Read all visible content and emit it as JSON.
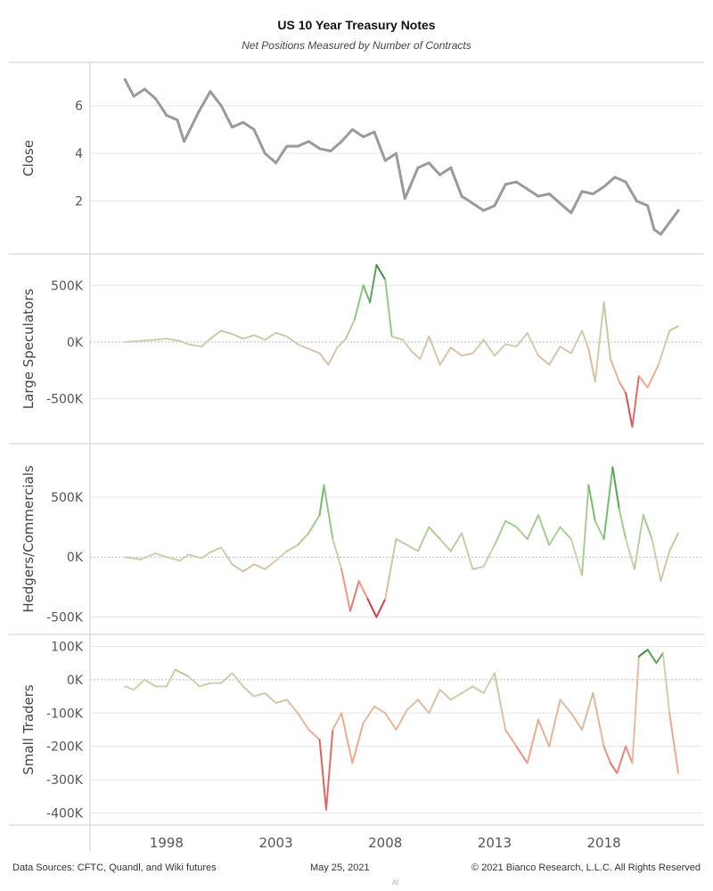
{
  "title": "US 10 Year Treasury Notes",
  "subtitle": "Net Positions Measured by Number of Contracts",
  "footer": {
    "sources": "Data Sources: CFTC, Quandl, and Wiki futures",
    "date": "May 25, 2021",
    "copyright": "© 2021 Bianco Research, L.L.C. All Rights Reserved",
    "tiny": "Al"
  },
  "colors": {
    "close_line": "#9a9a9a",
    "positive_strong": "#2e7d32",
    "positive_light": "#8ccc7e",
    "neutral": "#cfcfb0",
    "negative_light": "#f4a58e",
    "negative_strong": "#c2152b",
    "grid": "#e6e6e6",
    "zero_line": "#bbbbbb",
    "axis_text": "#555555"
  },
  "chart_data": [
    {
      "type": "line",
      "ylabel": "Close",
      "yticks": [
        2,
        4,
        6
      ],
      "ytick_labels": [
        "2",
        "4",
        "6"
      ],
      "ylim": [
        0,
        7.6
      ],
      "x": [
        1996.1,
        1996.5,
        1997.0,
        1997.5,
        1998.0,
        1998.5,
        1998.8,
        1999.5,
        2000.0,
        2000.5,
        2001.0,
        2001.5,
        2002.0,
        2002.5,
        2003.0,
        2003.5,
        2004.0,
        2004.5,
        2005.0,
        2005.5,
        2006.0,
        2006.5,
        2007.0,
        2007.5,
        2008.0,
        2008.5,
        2008.9,
        2009.5,
        2010.0,
        2010.5,
        2011.0,
        2011.5,
        2012.0,
        2012.5,
        2013.0,
        2013.5,
        2014.0,
        2014.5,
        2015.0,
        2015.5,
        2016.0,
        2016.5,
        2017.0,
        2017.5,
        2018.0,
        2018.5,
        2019.0,
        2019.5,
        2020.0,
        2020.3,
        2020.6,
        2021.0,
        2021.4
      ],
      "values": [
        7.1,
        6.4,
        6.7,
        6.3,
        5.6,
        5.4,
        4.5,
        5.8,
        6.6,
        6.0,
        5.1,
        5.3,
        5.0,
        4.0,
        3.6,
        4.3,
        4.3,
        4.5,
        4.2,
        4.1,
        4.5,
        5.0,
        4.7,
        4.9,
        3.7,
        4.0,
        2.1,
        3.4,
        3.6,
        3.1,
        3.4,
        2.2,
        1.9,
        1.6,
        1.8,
        2.7,
        2.8,
        2.5,
        2.2,
        2.3,
        1.9,
        1.5,
        2.4,
        2.3,
        2.6,
        3.0,
        2.8,
        2.0,
        1.8,
        0.8,
        0.6,
        1.1,
        1.6
      ]
    },
    {
      "type": "line",
      "ylabel": "Large Speculators",
      "yticks": [
        -500000,
        0,
        500000
      ],
      "ytick_labels": [
        "-500K",
        "0K",
        "500K"
      ],
      "ylim": [
        -850000,
        730000
      ],
      "x": [
        1996.1,
        1996.8,
        1997.5,
        1998.0,
        1998.6,
        1999.0,
        1999.6,
        2000.0,
        2000.5,
        2001.0,
        2001.5,
        2002.0,
        2002.5,
        2003.0,
        2003.5,
        2004.0,
        2004.5,
        2005.0,
        2005.4,
        2005.8,
        2006.2,
        2006.6,
        2007.0,
        2007.3,
        2007.6,
        2008.0,
        2008.3,
        2008.8,
        2009.2,
        2009.6,
        2010.0,
        2010.5,
        2011.0,
        2011.5,
        2012.0,
        2012.5,
        2013.0,
        2013.5,
        2014.0,
        2014.5,
        2015.0,
        2015.5,
        2016.0,
        2016.5,
        2017.0,
        2017.3,
        2017.6,
        2018.0,
        2018.3,
        2018.7,
        2019.0,
        2019.3,
        2019.6,
        2020.0,
        2020.5,
        2021.0,
        2021.4
      ],
      "values": [
        0,
        10000,
        20000,
        30000,
        10000,
        -20000,
        -40000,
        30000,
        100000,
        70000,
        30000,
        60000,
        20000,
        80000,
        50000,
        -20000,
        -60000,
        -100000,
        -200000,
        -50000,
        30000,
        200000,
        500000,
        350000,
        680000,
        550000,
        50000,
        20000,
        -80000,
        -150000,
        50000,
        -200000,
        -50000,
        -120000,
        -100000,
        20000,
        -120000,
        -20000,
        -40000,
        80000,
        -120000,
        -200000,
        -40000,
        -100000,
        100000,
        -60000,
        -350000,
        350000,
        -150000,
        -350000,
        -450000,
        -750000,
        -300000,
        -400000,
        -200000,
        100000,
        140000
      ]
    },
    {
      "type": "line",
      "ylabel": "Hedgers/Commercials",
      "yticks": [
        -500000,
        0,
        500000
      ],
      "ytick_labels": [
        "-500K",
        "0K",
        "500K"
      ],
      "ylim": [
        -600000,
        900000
      ],
      "x": [
        1996.1,
        1996.8,
        1997.5,
        1998.0,
        1998.6,
        1999.0,
        1999.6,
        2000.0,
        2000.5,
        2001.0,
        2001.5,
        2002.0,
        2002.5,
        2003.0,
        2003.5,
        2004.0,
        2004.5,
        2005.0,
        2005.2,
        2005.6,
        2006.0,
        2006.4,
        2006.8,
        2007.2,
        2007.6,
        2008.0,
        2008.5,
        2009.0,
        2009.5,
        2010.0,
        2010.5,
        2011.0,
        2011.5,
        2012.0,
        2012.5,
        2013.0,
        2013.5,
        2014.0,
        2014.5,
        2015.0,
        2015.5,
        2016.0,
        2016.5,
        2017.0,
        2017.3,
        2017.6,
        2018.0,
        2018.4,
        2018.7,
        2019.0,
        2019.4,
        2019.8,
        2020.2,
        2020.6,
        2021.0,
        2021.4
      ],
      "values": [
        0,
        -20000,
        30000,
        0,
        -30000,
        20000,
        -10000,
        40000,
        80000,
        -60000,
        -120000,
        -60000,
        -100000,
        -30000,
        50000,
        100000,
        200000,
        350000,
        600000,
        150000,
        -100000,
        -450000,
        -200000,
        -350000,
        -500000,
        -350000,
        150000,
        100000,
        50000,
        250000,
        150000,
        50000,
        200000,
        -100000,
        -80000,
        100000,
        300000,
        250000,
        150000,
        350000,
        100000,
        250000,
        150000,
        -150000,
        600000,
        300000,
        150000,
        750000,
        400000,
        150000,
        -100000,
        350000,
        150000,
        -200000,
        50000,
        200000
      ]
    },
    {
      "type": "line",
      "ylabel": "Small Traders",
      "yticks": [
        -400000,
        -300000,
        -200000,
        -100000,
        0,
        100000
      ],
      "ytick_labels": [
        "-400K",
        "-300K",
        "-200K",
        "-100K",
        "0K",
        "100K"
      ],
      "ylim": [
        -420000,
        120000
      ],
      "x": [
        1996.1,
        1996.5,
        1997.0,
        1997.5,
        1998.0,
        1998.4,
        1999.0,
        1999.5,
        2000.0,
        2000.5,
        2001.0,
        2001.5,
        2002.0,
        2002.5,
        2003.0,
        2003.5,
        2004.0,
        2004.5,
        2005.0,
        2005.3,
        2005.6,
        2006.0,
        2006.5,
        2007.0,
        2007.5,
        2008.0,
        2008.5,
        2009.0,
        2009.5,
        2010.0,
        2010.5,
        2011.0,
        2011.5,
        2012.0,
        2012.5,
        2013.0,
        2013.5,
        2014.0,
        2014.5,
        2015.0,
        2015.5,
        2016.0,
        2016.5,
        2017.0,
        2017.5,
        2018.0,
        2018.3,
        2018.6,
        2019.0,
        2019.3,
        2019.6,
        2020.0,
        2020.4,
        2020.7,
        2021.0,
        2021.4
      ],
      "values": [
        -20000,
        -30000,
        0,
        -20000,
        -20000,
        30000,
        10000,
        -20000,
        -10000,
        -10000,
        20000,
        -20000,
        -50000,
        -40000,
        -70000,
        -60000,
        -100000,
        -150000,
        -180000,
        -390000,
        -150000,
        -100000,
        -250000,
        -130000,
        -80000,
        -100000,
        -150000,
        -90000,
        -60000,
        -100000,
        -30000,
        -60000,
        -40000,
        -20000,
        -40000,
        20000,
        -150000,
        -200000,
        -250000,
        -120000,
        -200000,
        -60000,
        -100000,
        -150000,
        -40000,
        -200000,
        -250000,
        -280000,
        -200000,
        -250000,
        70000,
        90000,
        50000,
        80000,
        -100000,
        -280000
      ]
    }
  ],
  "x_axis": {
    "ticks": [
      1998,
      2003,
      2008,
      2013,
      2018
    ],
    "tick_labels": [
      "1998",
      "2003",
      "2008",
      "2013",
      "2018"
    ],
    "xlim": [
      1994.5,
      2022.5
    ]
  }
}
